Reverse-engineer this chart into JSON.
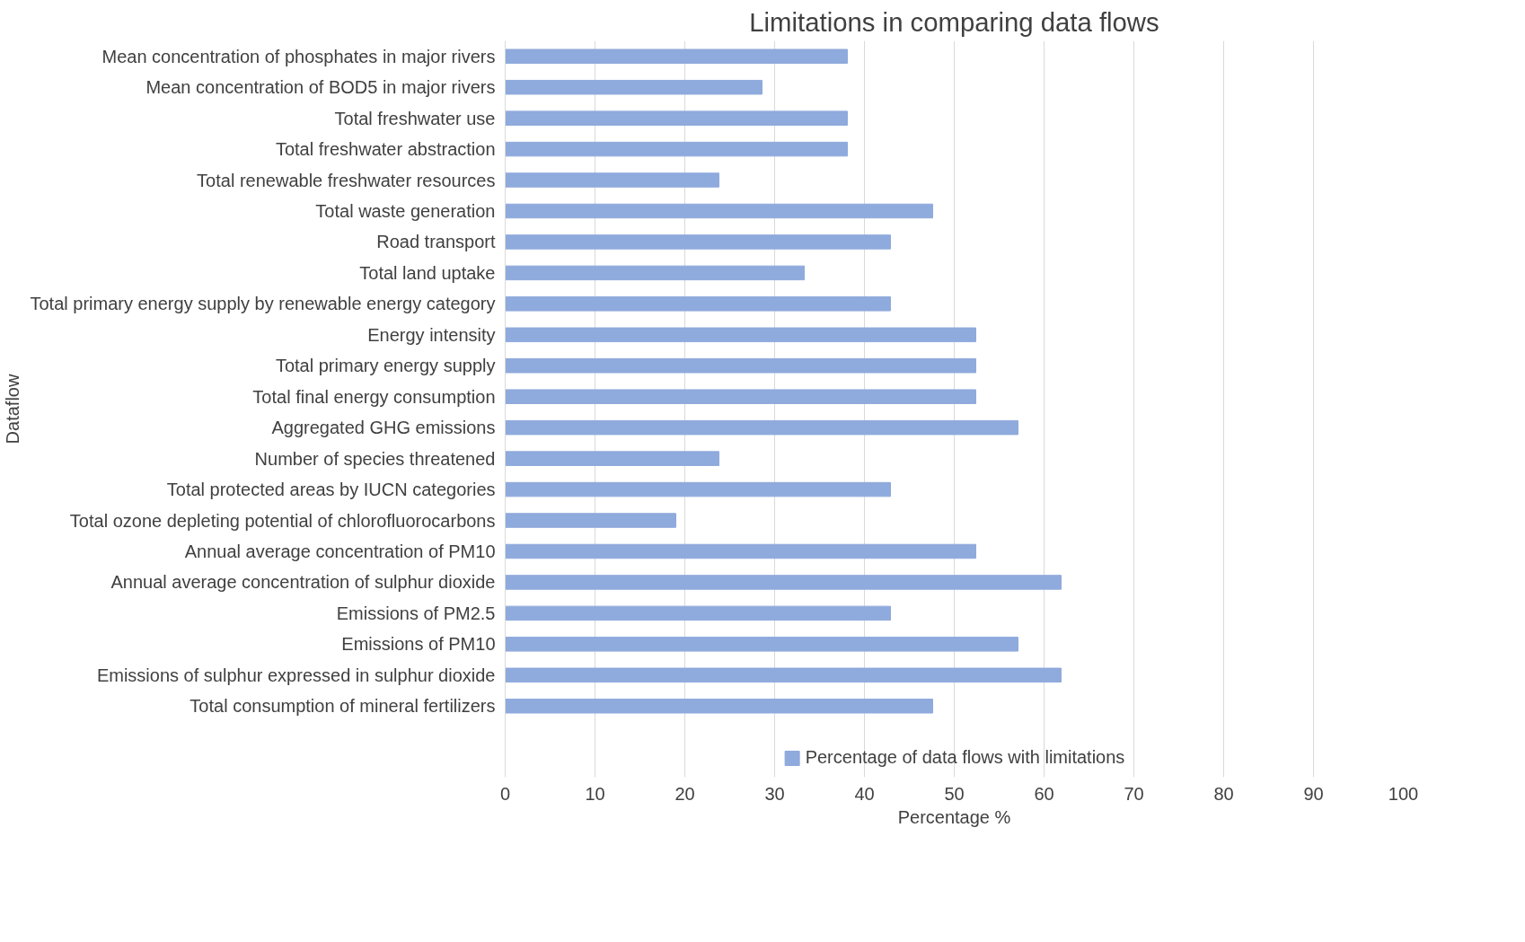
{
  "chart_data": {
    "type": "bar",
    "orientation": "horizontal",
    "title": "Limitations in comparing data flows",
    "xlabel": "Percentage %",
    "ylabel": "Dataflow",
    "categories": [
      "Mean concentration of phosphates in major rivers",
      "Mean concentration of BOD5 in major rivers",
      "Total freshwater use",
      "Total freshwater abstraction",
      "Total renewable freshwater resources",
      "Total waste generation",
      "Road transport",
      "Total land uptake",
      "Total primary energy supply by renewable energy category",
      "Energy intensity",
      "Total primary energy supply",
      "Total final energy consumption",
      "Aggregated GHG emissions",
      "Number of species threatened",
      "Total protected areas by IUCN categories",
      "Total ozone depleting potential of chlorofluorocarbons",
      "Annual average concentration of PM10",
      "Annual average concentration of sulphur dioxide",
      "Emissions of PM2.5",
      "Emissions of PM10",
      "Emissions of sulphur expressed in sulphur dioxide",
      "Total consumption of mineral fertilizers"
    ],
    "series": [
      {
        "name": "Percentage of data flows with limitations",
        "color": "#8faadc",
        "values": [
          38.1,
          28.6,
          38.1,
          38.1,
          23.8,
          47.6,
          42.9,
          33.3,
          42.9,
          52.4,
          52.4,
          52.4,
          57.1,
          23.8,
          42.9,
          19.0,
          52.4,
          61.9,
          42.9,
          57.1,
          61.9,
          47.6
        ]
      }
    ],
    "xlim": [
      0,
      100
    ],
    "xticks": [
      0,
      10,
      20,
      30,
      40,
      50,
      60,
      70,
      80,
      90,
      100
    ],
    "grid": "x",
    "legend": "bottom"
  }
}
